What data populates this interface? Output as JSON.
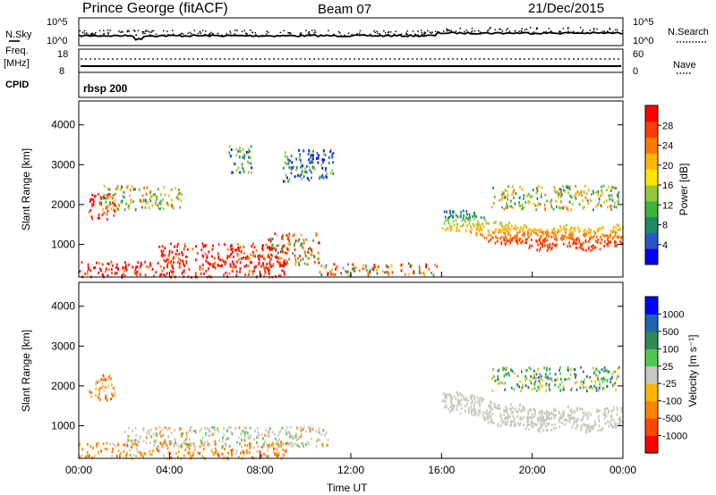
{
  "header": {
    "station": "Prince George (fitACF)",
    "beam": "Beam 07",
    "date": "21/Dec/2015"
  },
  "summary": {
    "nsky_label": "N.Sky",
    "nsearch_label": "N.Search",
    "freq_label": "Freq.",
    "freq_unit": "[MHz]",
    "nave_label": "Nave",
    "cpid_label": "CPID",
    "cpid_value": "rbsp 200",
    "nsky_ticks": [
      "10^5",
      "10^0"
    ],
    "freq_ticks": [
      "18",
      "8"
    ],
    "nave_ticks": [
      "60",
      "0"
    ]
  },
  "time_axis": {
    "label": "Time UT",
    "ticks": [
      "00:00",
      "04:00",
      "08:00",
      "12:00",
      "16:00",
      "20:00",
      "00:00"
    ]
  },
  "chart_data": [
    {
      "type": "heatmap",
      "name": "power",
      "ylabel": "Slant Range [km]",
      "xlim_hours": [
        0,
        24
      ],
      "ylim": [
        180,
        4600
      ],
      "yticks": [
        "4000",
        "3000",
        "2000",
        "1000"
      ],
      "colorbar": {
        "label": "Power [dB]",
        "ticks": [
          "28",
          "24",
          "20",
          "16",
          "12",
          "8",
          "4"
        ],
        "colors": [
          "#0000ff",
          "#2856c8",
          "#1e8c64",
          "#3fb43c",
          "#96c83c",
          "#ffe600",
          "#ffb400",
          "#ff7800",
          "#ff3c00",
          "#ff0000"
        ]
      },
      "regions": [
        {
          "t": [
            0.0,
            9.2
          ],
          "r": [
            200,
            600
          ],
          "level": "high"
        },
        {
          "t": [
            3.5,
            9.2
          ],
          "r": [
            600,
            1050
          ],
          "level": "high"
        },
        {
          "t": [
            8.3,
            10.6
          ],
          "r": [
            500,
            1300
          ],
          "level": "mixed"
        },
        {
          "t": [
            10.6,
            15.8
          ],
          "r": [
            250,
            550
          ],
          "level": "mixed"
        },
        {
          "t": [
            0.4,
            1.6
          ],
          "r": [
            1650,
            2300
          ],
          "level": "high"
        },
        {
          "t": [
            1.0,
            4.5
          ],
          "r": [
            1900,
            2500
          ],
          "level": "mid"
        },
        {
          "t": [
            6.6,
            7.6
          ],
          "r": [
            2800,
            3500
          ],
          "level": "low"
        },
        {
          "t": [
            9.0,
            11.3
          ],
          "r": [
            2600,
            3400
          ],
          "level": "low"
        },
        {
          "t": [
            16.0,
            24.0
          ],
          "r": [
            1000,
            2000
          ],
          "level": "arc"
        },
        {
          "t": [
            18.2,
            23.8
          ],
          "r": [
            1900,
            2500
          ],
          "level": "mid"
        }
      ]
    },
    {
      "type": "heatmap",
      "name": "velocity",
      "ylabel": "Slant Range [km]",
      "xlim_hours": [
        0,
        24
      ],
      "ylim": [
        180,
        4600
      ],
      "yticks": [
        "4000",
        "3000",
        "2000",
        "1000"
      ],
      "colorbar": {
        "label": "Velocity [m s⁻¹]",
        "ticks": [
          "1000",
          "500",
          "100",
          "25",
          "-25",
          "-100",
          "-500",
          "-1000"
        ],
        "colors": [
          "#ff0000",
          "#ff4600",
          "#ff8200",
          "#ffb400",
          "#c8c8c0",
          "#50c850",
          "#2e8b57",
          "#1e64b4",
          "#0000ff"
        ]
      },
      "regions": [
        {
          "t": [
            0.0,
            9.2
          ],
          "r": [
            200,
            600
          ],
          "level": "orange"
        },
        {
          "t": [
            2.0,
            11.0
          ],
          "r": [
            500,
            1000
          ],
          "level": "grey"
        },
        {
          "t": [
            16.0,
            24.0
          ],
          "r": [
            1000,
            2000
          ],
          "level": "grey-arc"
        },
        {
          "t": [
            0.4,
            1.6
          ],
          "r": [
            1650,
            2300
          ],
          "level": "orange"
        },
        {
          "t": [
            18.2,
            23.8
          ],
          "r": [
            1900,
            2500
          ],
          "level": "green"
        }
      ]
    }
  ]
}
